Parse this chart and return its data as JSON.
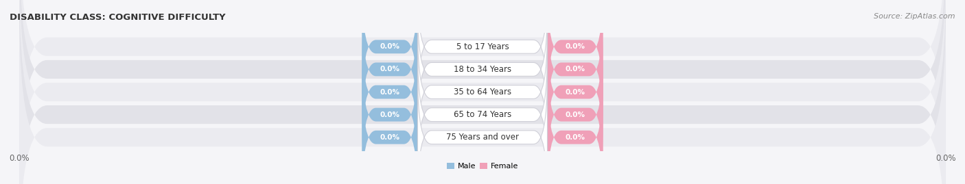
{
  "title": "DISABILITY CLASS: COGNITIVE DIFFICULTY",
  "source": "Source: ZipAtlas.com",
  "categories": [
    "5 to 17 Years",
    "18 to 34 Years",
    "35 to 64 Years",
    "65 to 74 Years",
    "75 Years and over"
  ],
  "male_values": [
    0.0,
    0.0,
    0.0,
    0.0,
    0.0
  ],
  "female_values": [
    0.0,
    0.0,
    0.0,
    0.0,
    0.0
  ],
  "male_color": "#94bedd",
  "female_color": "#f0a0b8",
  "row_colors": [
    "#ebebf0",
    "#e2e2e8"
  ],
  "title_fontsize": 9.5,
  "source_fontsize": 8,
  "tick_fontsize": 8.5,
  "label_fontsize": 7.5,
  "category_fontsize": 8.5,
  "background_color": "#f5f5f8"
}
